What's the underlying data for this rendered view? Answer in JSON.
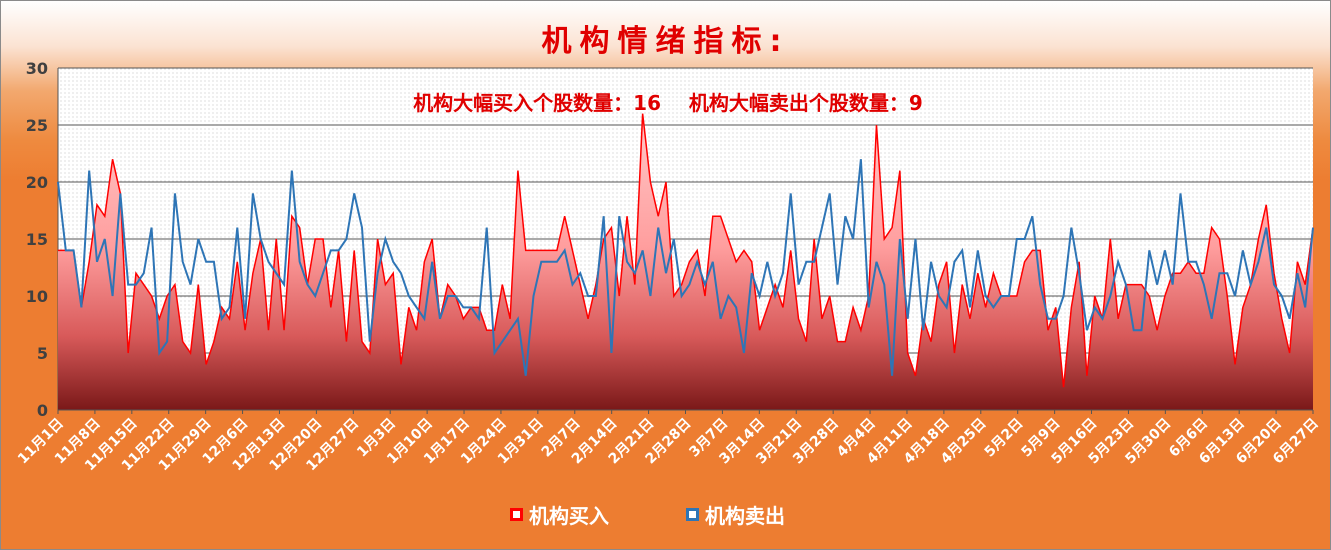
{
  "chart_data": {
    "type": "area",
    "title": "机构情绪指标:",
    "annotation": "机构大幅买入个股数量：16    机构大幅卖出个股数量：9",
    "ylim": [
      0,
      30
    ],
    "yticks": [
      0,
      5,
      10,
      15,
      20,
      25,
      30
    ],
    "x_tick_labels": [
      "11月1日",
      "11月8日",
      "11月15日",
      "11月22日",
      "11月29日",
      "12月6日",
      "12月13日",
      "12月20日",
      "12月27日",
      "1月3日",
      "1月10日",
      "1月17日",
      "1月24日",
      "1月31日",
      "2月7日",
      "2月14日",
      "2月21日",
      "2月28日",
      "3月7日",
      "3月14日",
      "3月21日",
      "3月28日",
      "4月4日",
      "4月11日",
      "4月18日",
      "4月25日",
      "5月2日",
      "5月9日",
      "5月16日",
      "5月23日",
      "5月30日",
      "6月6日",
      "6月13日",
      "6月20日",
      "6月27日"
    ],
    "grid": true,
    "legend_position": "bottom",
    "series": [
      {
        "name": "机构买入",
        "color": "#ff0000",
        "style": "area",
        "values": [
          14,
          14,
          14,
          9,
          13,
          18,
          17,
          22,
          19,
          5,
          12,
          11,
          10,
          8,
          10,
          11,
          6,
          5,
          11,
          4,
          6,
          9,
          8,
          13,
          7,
          12,
          15,
          7,
          15,
          7,
          17,
          16,
          11,
          15,
          15,
          9,
          14,
          6,
          14,
          6,
          5,
          15,
          11,
          12,
          4,
          9,
          7,
          13,
          15,
          8,
          11,
          10,
          8,
          9,
          9,
          7,
          7,
          11,
          8,
          21,
          14,
          14,
          14,
          14,
          14,
          17,
          14,
          11,
          8,
          11,
          15,
          16,
          10,
          17,
          11,
          26,
          20,
          17,
          20,
          10,
          11,
          13,
          14,
          10,
          17,
          17,
          15,
          13,
          14,
          13,
          7,
          9,
          11,
          9,
          14,
          8,
          6,
          15,
          8,
          10,
          6,
          6,
          9,
          7,
          10,
          25,
          15,
          16,
          21,
          5,
          3,
          8,
          6,
          11,
          13,
          5,
          11,
          8,
          12,
          9,
          12,
          10,
          10,
          10,
          13,
          14,
          14,
          7,
          9,
          2,
          9,
          13,
          3,
          10,
          8,
          15,
          8,
          11,
          11,
          11,
          10,
          7,
          10,
          12,
          12,
          13,
          12,
          12,
          16,
          15,
          10,
          4,
          9,
          11,
          15,
          18,
          12,
          8,
          5,
          13,
          11,
          16
        ]
      },
      {
        "name": "机构卖出",
        "color": "#2e75b6",
        "style": "line",
        "values": [
          20,
          14,
          14,
          9,
          21,
          13,
          15,
          10,
          19,
          11,
          11,
          12,
          16,
          5,
          6,
          19,
          13,
          11,
          15,
          13,
          13,
          8,
          9,
          16,
          8,
          19,
          15,
          13,
          12,
          11,
          21,
          13,
          11,
          10,
          12,
          14,
          14,
          15,
          19,
          16,
          6,
          12,
          15,
          13,
          12,
          10,
          9,
          8,
          13,
          8,
          10,
          10,
          9,
          9,
          8,
          16,
          5,
          6,
          7,
          8,
          3,
          10,
          13,
          13,
          13,
          14,
          11,
          12,
          10,
          10,
          17,
          5,
          17,
          13,
          12,
          14,
          10,
          16,
          12,
          15,
          10,
          11,
          13,
          11,
          13,
          8,
          10,
          9,
          5,
          12,
          10,
          13,
          10,
          12,
          19,
          11,
          13,
          13,
          16,
          19,
          11,
          17,
          15,
          22,
          9,
          13,
          11,
          3,
          15,
          8,
          15,
          7,
          13,
          10,
          9,
          13,
          14,
          9,
          14,
          10,
          9,
          10,
          10,
          15,
          15,
          17,
          11,
          8,
          8,
          10,
          16,
          12,
          7,
          9,
          8,
          10,
          13,
          11,
          7,
          7,
          14,
          11,
          14,
          11,
          19,
          13,
          13,
          11,
          8,
          12,
          12,
          10,
          14,
          11,
          13,
          16,
          11,
          10,
          8,
          12,
          9,
          16
        ]
      }
    ]
  },
  "legend": {
    "buy_label": "机构买入",
    "sell_label": "机构卖出"
  }
}
